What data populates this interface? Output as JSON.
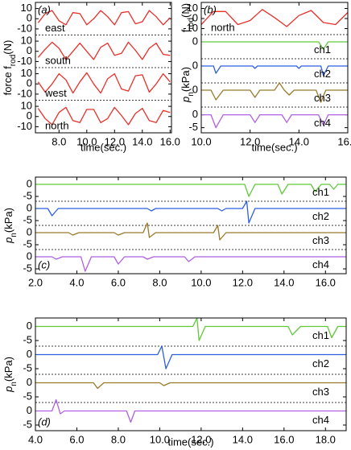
{
  "chart_data": [
    {
      "type": "line",
      "letter": "(a)",
      "ylabel": [
        "force f",
        "rod",
        "(N)"
      ],
      "xlabel": "time(sec.)",
      "xlim": [
        6.3,
        16.1
      ],
      "xticks": [
        {
          "value": 8,
          "label": "8.0"
        },
        {
          "value": 10,
          "label": "10.0"
        },
        {
          "value": 12,
          "label": "12.0"
        },
        {
          "value": 14,
          "label": "14.0"
        },
        {
          "value": 16,
          "label": "16.0"
        }
      ],
      "x": [
        6.5,
        7,
        7.5,
        8,
        8.5,
        9,
        9.5,
        10,
        10.5,
        11,
        11.5,
        12,
        12.5,
        13,
        13.5,
        14,
        14.5,
        15,
        15.5,
        16
      ],
      "panels": [
        {
          "label": "east",
          "ylim": [
            -16,
            16
          ],
          "yticks": [
            10,
            0,
            -10
          ],
          "series": [
            {
              "color": "#e8302a",
              "values": [
                -4,
                5,
                8,
                -2,
                -6,
                6,
                5,
                -6,
                0,
                8,
                2,
                -6,
                6,
                7,
                -5,
                -3,
                8,
                2,
                -6,
                1
              ]
            }
          ]
        },
        {
          "label": "south",
          "ylim": [
            -16,
            16
          ],
          "yticks": [
            10,
            0,
            -10
          ],
          "series": [
            {
              "color": "#e8302a",
              "values": [
                -6,
                2,
                9,
                3,
                -8,
                0,
                8,
                0,
                -8,
                4,
                8,
                -4,
                -2,
                9,
                1,
                -8,
                3,
                8,
                -3,
                -4
              ]
            }
          ]
        },
        {
          "label": "west",
          "ylim": [
            -16,
            16
          ],
          "yticks": [
            10,
            0,
            -10
          ],
          "series": [
            {
              "color": "#e8302a",
              "values": [
                2,
                -8,
                0,
                10,
                4,
                -9,
                2,
                11,
                0,
                -9,
                5,
                10,
                -5,
                -7,
                8,
                9,
                -8,
                0,
                10,
                2
              ]
            }
          ]
        },
        {
          "label": "north",
          "ylim": [
            -16,
            16
          ],
          "yticks": [
            10,
            0,
            -10
          ],
          "series": [
            {
              "color": "#e8302a",
              "values": [
                8,
                -2,
                -8,
                4,
                9,
                -4,
                -6,
                7,
                7,
                -6,
                -2,
                9,
                1,
                -8,
                3,
                8,
                -4,
                -6,
                6,
                4
              ]
            }
          ]
        }
      ]
    },
    {
      "type": "line",
      "letter": "(b)",
      "ylabels": [
        [
          "f",
          "rod",
          "(N)"
        ],
        [
          "p",
          "n",
          "(kPa)"
        ]
      ],
      "xlabel": "time(sec.)",
      "xlim": [
        10,
        16
      ],
      "xticks": [
        {
          "value": 10,
          "label": "10.0"
        },
        {
          "value": 12,
          "label": "12.0"
        },
        {
          "value": 14,
          "label": "14.0"
        },
        {
          "value": 16,
          "label": "16.0"
        }
      ],
      "panels": [
        {
          "label": "north",
          "ylim": [
            -16,
            16
          ],
          "yticks": [
            10,
            0,
            -10
          ],
          "series": [
            {
              "color": "#e8302a",
              "x": [
                10,
                10.5,
                11,
                11.5,
                12,
                12.5,
                13,
                13.5,
                14,
                14.5,
                15,
                15.5,
                16
              ],
              "values": [
                -6,
                7,
                7,
                -6,
                -2,
                9,
                1,
                -8,
                3,
                8,
                -4,
                -6,
                6
              ]
            }
          ]
        },
        {
          "label": "ch1",
          "ylim": [
            -7,
            3
          ],
          "yticks": [
            0
          ],
          "series": [
            {
              "color": "#5fc93a",
              "x": [
                10,
                14.8,
                15.0,
                15.2,
                16
              ],
              "values": [
                0,
                0,
                -3,
                0,
                0
              ]
            }
          ]
        },
        {
          "label": "ch2",
          "ylim": [
            -7,
            3
          ],
          "yticks": [
            0
          ],
          "series": [
            {
              "color": "#2c5fe0",
              "x": [
                10,
                10.5,
                10.6,
                10.8,
                12.1,
                12.2,
                12.3,
                13.9,
                14,
                14.1,
                14.9,
                15,
                15.2,
                16
              ],
              "values": [
                0,
                0,
                -3,
                0,
                0,
                -1,
                0,
                0,
                -1,
                0,
                0,
                -4,
                0,
                0
              ]
            }
          ]
        },
        {
          "label": "ch3",
          "ylim": [
            -7,
            3
          ],
          "yticks": [
            0
          ],
          "series": [
            {
              "color": "#9a7a2a",
              "x": [
                10,
                10.4,
                10.6,
                10.9,
                12,
                12.2,
                12.4,
                13.0,
                13.2,
                13.4,
                13.6,
                13.8,
                14.7,
                14.9,
                15.1,
                16
              ],
              "values": [
                0,
                0,
                -4,
                0,
                0,
                -3,
                0,
                0,
                3,
                0,
                -2,
                0,
                0,
                -5,
                0,
                0
              ]
            }
          ]
        },
        {
          "label": "ch4",
          "ylim": [
            -7,
            3
          ],
          "yticks": [
            0,
            -5
          ],
          "series": [
            {
              "color": "#b060e0",
              "x": [
                10,
                10.4,
                10.6,
                10.9,
                12.0,
                12.2,
                12.4,
                13.3,
                13.5,
                13.7,
                14.8,
                15,
                15.2,
                16
              ],
              "values": [
                0,
                0,
                -5,
                0,
                0,
                -3,
                0,
                0,
                -3,
                0,
                0,
                -4,
                0,
                0
              ]
            }
          ]
        }
      ]
    },
    {
      "type": "line",
      "letter": "(c)",
      "ylabel": [
        "p",
        "n",
        "(kPa)"
      ],
      "xlim": [
        2,
        17
      ],
      "xticks": [
        {
          "value": 2,
          "label": "2.0"
        },
        {
          "value": 4,
          "label": "4.0"
        },
        {
          "value": 6,
          "label": "6.0"
        },
        {
          "value": 8,
          "label": "8.0"
        },
        {
          "value": 10,
          "label": "10.0"
        },
        {
          "value": 12,
          "label": "12.0"
        },
        {
          "value": 14,
          "label": "14.0"
        },
        {
          "value": 16,
          "label": "16.0"
        }
      ],
      "panels": [
        {
          "label": "ch1",
          "ylim": [
            -7,
            3
          ],
          "yticks": [
            0,
            -5
          ],
          "series": [
            {
              "color": "#5fc93a",
              "x": [
                2,
                12.1,
                12.3,
                12.6,
                13.7,
                13.9,
                14.2,
                15.3,
                15.5,
                15.8,
                16.2,
                16.4,
                16.6,
                17
              ],
              "values": [
                0,
                0,
                -5,
                0,
                0,
                -4,
                0,
                0,
                -3,
                0,
                0,
                -2,
                0,
                0
              ]
            }
          ]
        },
        {
          "label": "ch2",
          "ylim": [
            -7,
            3
          ],
          "yticks": [
            0,
            -5
          ],
          "series": [
            {
              "color": "#2c5fe0",
              "x": [
                2,
                2.6,
                2.8,
                3.1,
                7.4,
                7.6,
                7.8,
                10.8,
                11.0,
                11.2,
                12.0,
                12.2,
                12.3,
                12.6,
                17
              ],
              "values": [
                0,
                0,
                -3,
                0,
                0,
                -1,
                0,
                0,
                -1,
                0,
                0,
                3,
                -6,
                0,
                0
              ]
            }
          ]
        },
        {
          "label": "ch3",
          "ylim": [
            -7,
            3
          ],
          "yticks": [
            0,
            -5
          ],
          "series": [
            {
              "color": "#9a7a2a",
              "x": [
                2,
                3.6,
                3.8,
                4.1,
                5.8,
                6.0,
                6.3,
                7.2,
                7.4,
                7.5,
                7.8,
                10.6,
                10.8,
                10.9,
                11.2,
                17
              ],
              "values": [
                0,
                0,
                -1,
                0,
                0,
                -1,
                0,
                0,
                4,
                -2,
                0,
                0,
                3,
                -3,
                0,
                0
              ]
            }
          ]
        },
        {
          "label": "ch4",
          "ylim": [
            -7,
            3
          ],
          "yticks": [
            0,
            -5
          ],
          "series": [
            {
              "color": "#b060e0",
              "x": [
                2,
                2.8,
                3.0,
                3.3,
                4.2,
                4.4,
                4.7,
                5.8,
                6.0,
                6.3,
                7.2,
                7.4,
                7.7,
                9.2,
                9.4,
                9.7,
                17
              ],
              "values": [
                0,
                0,
                -1,
                0,
                0,
                -6,
                0,
                0,
                -3,
                0,
                0,
                -1,
                0,
                0,
                -2,
                0,
                0
              ]
            }
          ]
        }
      ]
    },
    {
      "type": "line",
      "letter": "(d)",
      "ylabel": [
        "p",
        "n",
        "(kPa)"
      ],
      "xlabel": "time(sec.)",
      "xlim": [
        4,
        19
      ],
      "xticks": [
        {
          "value": 4,
          "label": "4.0"
        },
        {
          "value": 6,
          "label": "6.0"
        },
        {
          "value": 8,
          "label": "8.0"
        },
        {
          "value": 10,
          "label": "10.0"
        },
        {
          "value": 12,
          "label": "12.0"
        },
        {
          "value": 14,
          "label": "14.0"
        },
        {
          "value": 16,
          "label": "16.0"
        },
        {
          "value": 18,
          "label": "18.0"
        }
      ],
      "panels": [
        {
          "label": "ch1",
          "ylim": [
            -7,
            3
          ],
          "yticks": [
            0,
            -5
          ],
          "series": [
            {
              "color": "#5fc93a",
              "x": [
                4,
                11.6,
                11.8,
                11.9,
                12.2,
                16.2,
                16.4,
                16.8,
                18.1,
                18.3,
                18.6,
                19
              ],
              "values": [
                0,
                0,
                3,
                -5,
                0,
                0,
                -3,
                0,
                0,
                -4,
                0,
                0
              ]
            }
          ]
        },
        {
          "label": "ch2",
          "ylim": [
            -7,
            3
          ],
          "yticks": [
            0,
            -5
          ],
          "series": [
            {
              "color": "#2c5fe0",
              "x": [
                4,
                9.9,
                10.1,
                10.3,
                10.6,
                19
              ],
              "values": [
                0,
                0,
                3,
                -5,
                0,
                0
              ]
            }
          ]
        },
        {
          "label": "ch3",
          "ylim": [
            -7,
            3
          ],
          "yticks": [
            0,
            -5
          ],
          "series": [
            {
              "color": "#9a7a2a",
              "x": [
                4,
                6.8,
                7.0,
                7.3,
                10.0,
                10.2,
                10.5,
                19
              ],
              "values": [
                0,
                0,
                -2,
                0,
                0,
                -1,
                0,
                0
              ]
            }
          ]
        },
        {
          "label": "ch4",
          "ylim": [
            -7,
            3
          ],
          "yticks": [
            0,
            -5
          ],
          "series": [
            {
              "color": "#b060e0",
              "x": [
                4,
                4.8,
                5.0,
                5.2,
                5.4,
                8.4,
                8.6,
                8.8,
                19
              ],
              "values": [
                0,
                0,
                4,
                -1,
                0,
                0,
                -4,
                0,
                0
              ]
            }
          ]
        }
      ]
    }
  ]
}
